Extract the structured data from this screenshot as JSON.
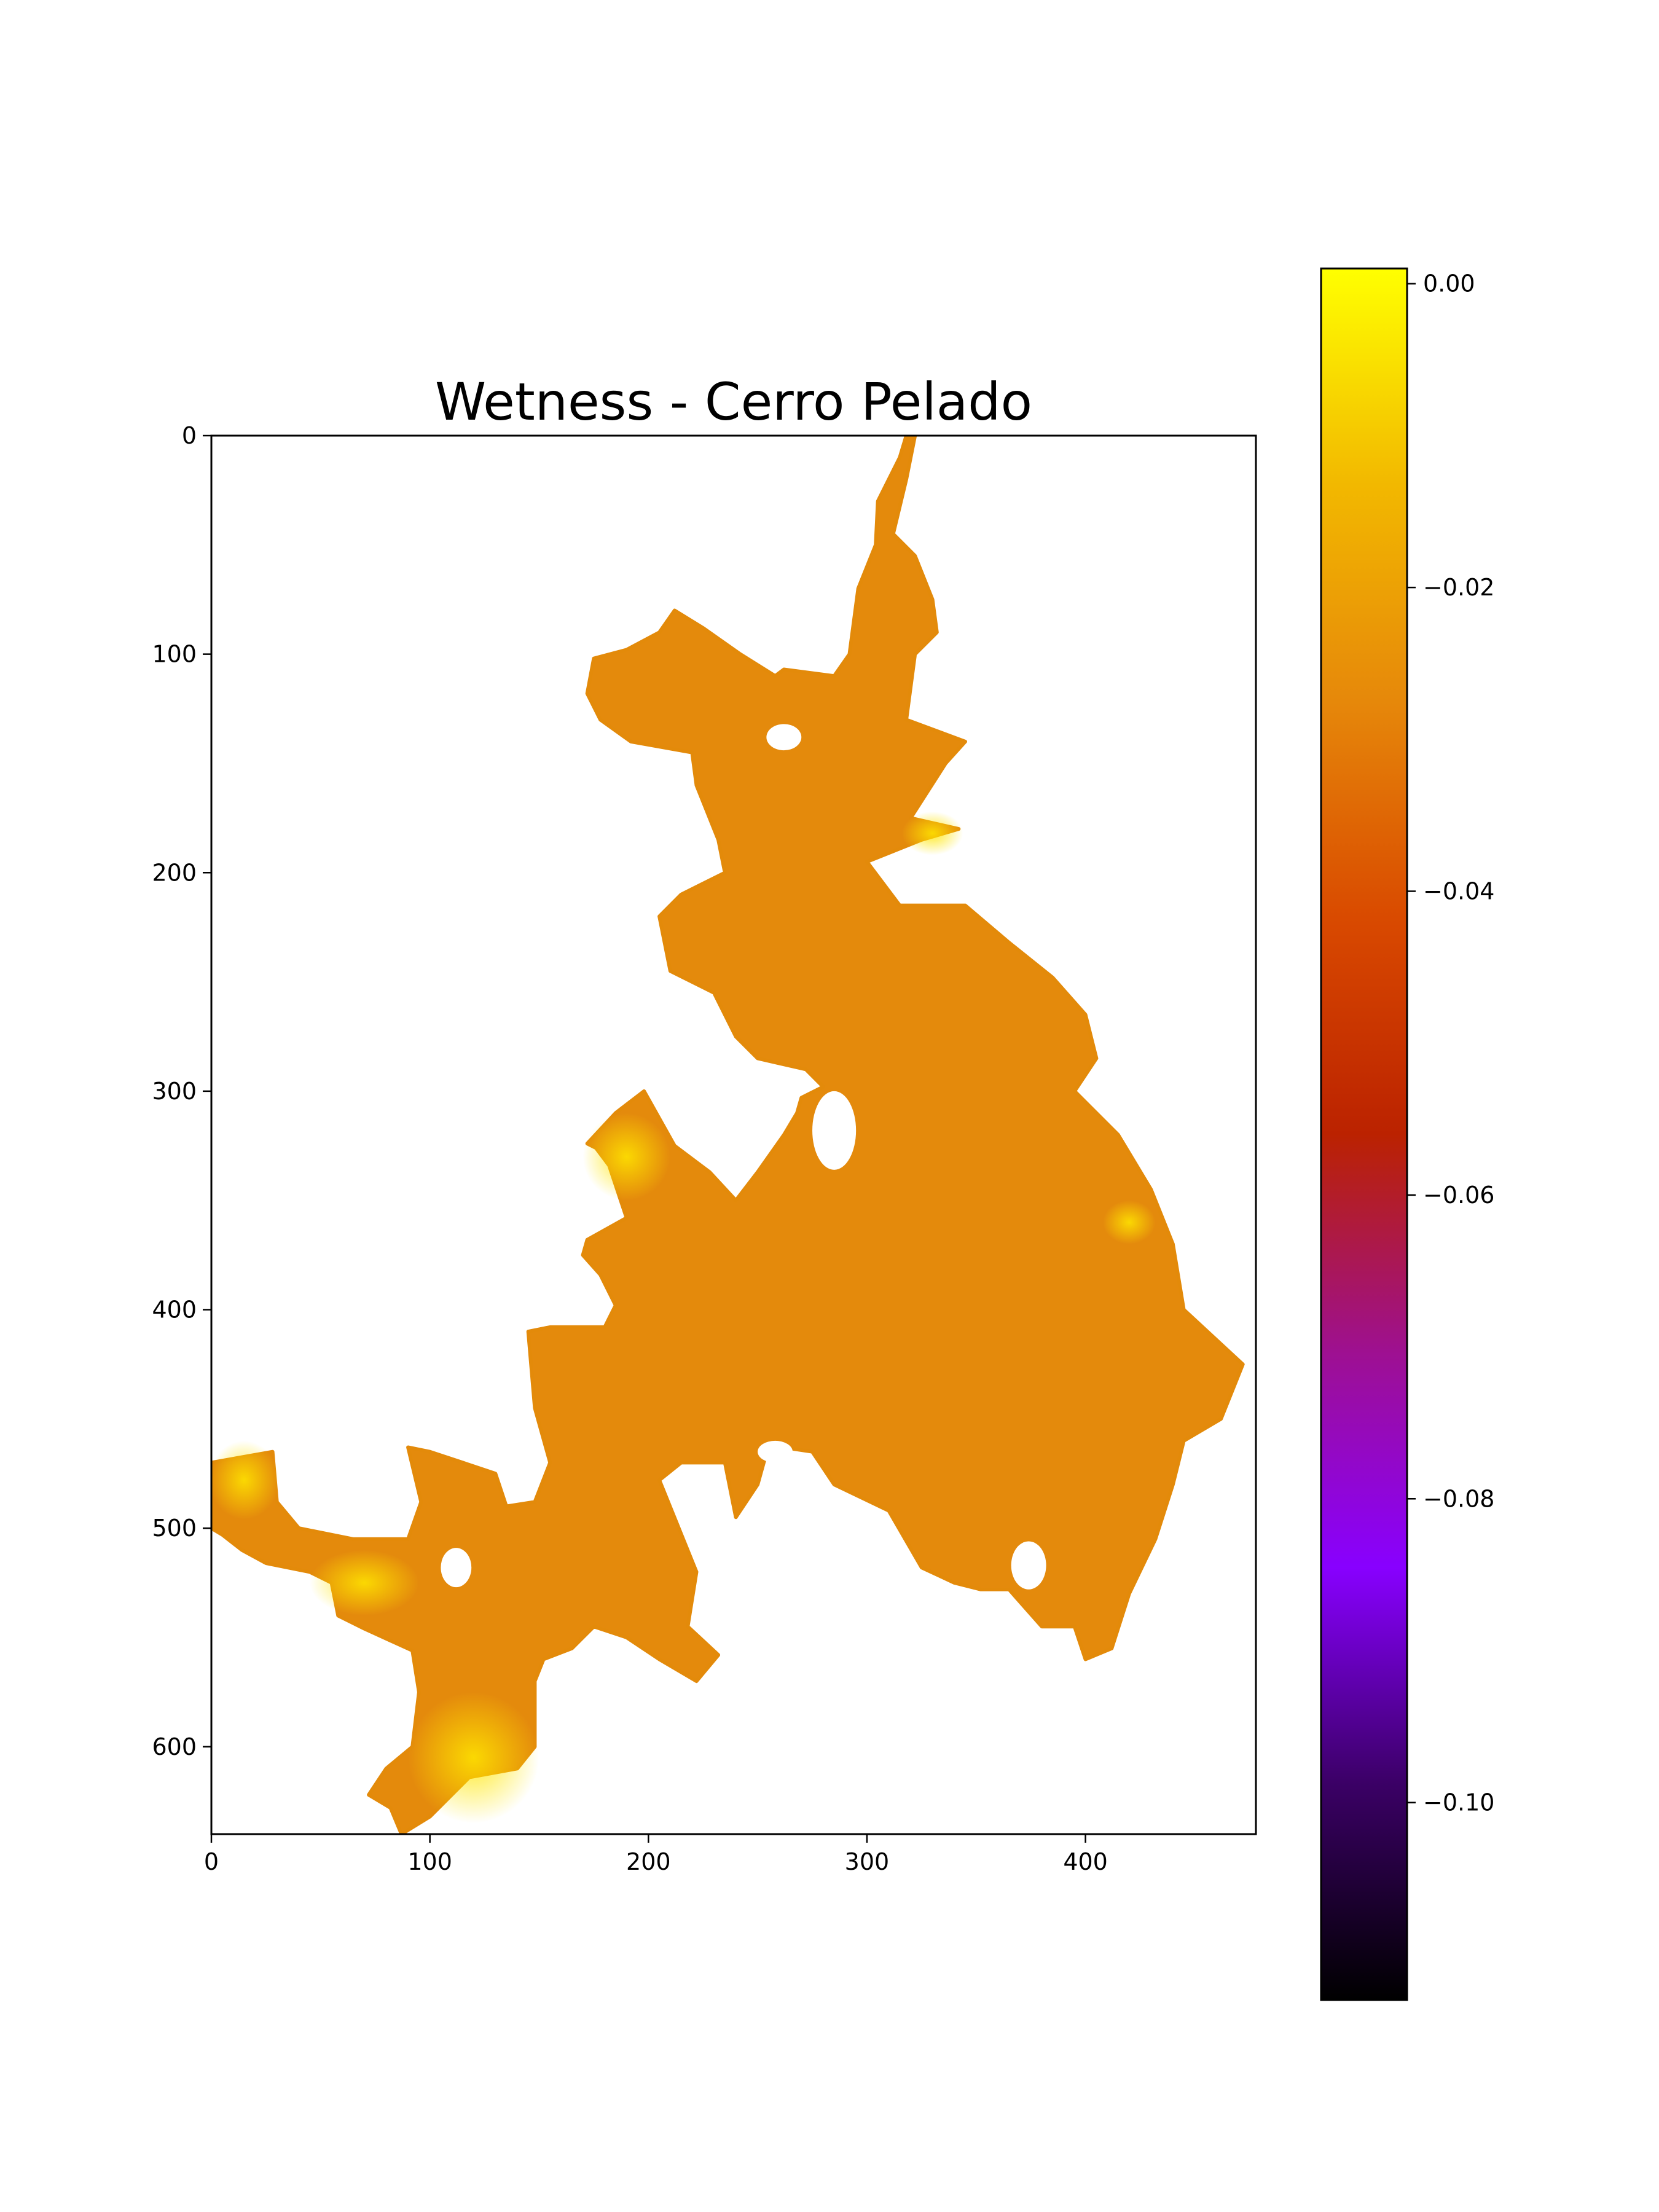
{
  "chart_data": {
    "type": "heatmap",
    "title": "Wetness - Cerro Pelado",
    "xlabel": "",
    "ylabel": "",
    "x_range": [
      0,
      478
    ],
    "y_range": [
      0,
      640
    ],
    "y_inverted": true,
    "x_ticks": [
      0,
      100,
      200,
      300,
      400
    ],
    "y_ticks": [
      0,
      100,
      200,
      300,
      400,
      500,
      600
    ],
    "x_tick_labels": [
      "0",
      "100",
      "200",
      "300",
      "400"
    ],
    "y_tick_labels": [
      "0",
      "100",
      "200",
      "300",
      "400",
      "500",
      "600"
    ],
    "colormap": "gnuplot",
    "colorbar": {
      "vmin": -0.113,
      "vmax": 0.001,
      "ticks": [
        0.0,
        -0.02,
        -0.04,
        -0.06,
        -0.08,
        -0.1
      ],
      "tick_labels": [
        "0.00",
        "−0.02",
        "−0.04",
        "−0.06",
        "−0.08",
        "−0.10"
      ],
      "colors": [
        "#000000",
        "#3b0066",
        "#8800ff",
        "#9e1090",
        "#bb2200",
        "#d94a00",
        "#e6880a",
        "#f2b800",
        "#ffff00"
      ]
    },
    "region_polygon": [
      [
        322,
        0
      ],
      [
        318,
        20
      ],
      [
        312,
        45
      ],
      [
        322,
        55
      ],
      [
        330,
        75
      ],
      [
        332,
        90
      ],
      [
        322,
        100
      ],
      [
        318,
        130
      ],
      [
        345,
        140
      ],
      [
        336,
        150
      ],
      [
        320,
        175
      ],
      [
        342,
        180
      ],
      [
        325,
        185
      ],
      [
        300,
        195
      ],
      [
        315,
        215
      ],
      [
        345,
        215
      ],
      [
        365,
        232
      ],
      [
        385,
        248
      ],
      [
        400,
        265
      ],
      [
        405,
        285
      ],
      [
        395,
        300
      ],
      [
        415,
        320
      ],
      [
        430,
        345
      ],
      [
        440,
        370
      ],
      [
        445,
        400
      ],
      [
        472,
        425
      ],
      [
        462,
        450
      ],
      [
        445,
        460
      ],
      [
        440,
        480
      ],
      [
        432,
        505
      ],
      [
        420,
        530
      ],
      [
        412,
        555
      ],
      [
        400,
        560
      ],
      [
        395,
        545
      ],
      [
        380,
        545
      ],
      [
        365,
        528
      ],
      [
        352,
        528
      ],
      [
        340,
        525
      ],
      [
        325,
        518
      ],
      [
        310,
        492
      ],
      [
        285,
        480
      ],
      [
        275,
        465
      ],
      [
        255,
        462
      ],
      [
        250,
        480
      ],
      [
        240,
        495
      ],
      [
        235,
        470
      ],
      [
        215,
        470
      ],
      [
        205,
        478
      ],
      [
        222,
        520
      ],
      [
        218,
        545
      ],
      [
        232,
        558
      ],
      [
        222,
        570
      ],
      [
        205,
        560
      ],
      [
        190,
        550
      ],
      [
        175,
        545
      ],
      [
        165,
        555
      ],
      [
        152,
        560
      ],
      [
        148,
        570
      ],
      [
        148,
        600
      ],
      [
        140,
        610
      ],
      [
        118,
        614
      ],
      [
        100,
        632
      ],
      [
        87,
        640
      ],
      [
        82,
        628
      ],
      [
        72,
        622
      ],
      [
        80,
        610
      ],
      [
        92,
        600
      ],
      [
        95,
        575
      ],
      [
        92,
        556
      ],
      [
        70,
        546
      ],
      [
        58,
        540
      ],
      [
        55,
        525
      ],
      [
        45,
        520
      ],
      [
        25,
        516
      ],
      [
        14,
        510
      ],
      [
        5,
        503
      ],
      [
        0,
        500
      ],
      [
        0,
        470
      ],
      [
        28,
        465
      ],
      [
        30,
        488
      ],
      [
        40,
        500
      ],
      [
        65,
        505
      ],
      [
        90,
        505
      ],
      [
        96,
        488
      ],
      [
        90,
        463
      ],
      [
        100,
        465
      ],
      [
        115,
        470
      ],
      [
        130,
        475
      ],
      [
        135,
        490
      ],
      [
        148,
        488
      ],
      [
        155,
        470
      ],
      [
        148,
        445
      ],
      [
        145,
        410
      ],
      [
        155,
        408
      ],
      [
        180,
        408
      ],
      [
        185,
        398
      ],
      [
        178,
        384
      ],
      [
        170,
        375
      ],
      [
        172,
        368
      ],
      [
        190,
        358
      ],
      [
        182,
        334
      ],
      [
        176,
        326
      ],
      [
        172,
        324
      ],
      [
        185,
        310
      ],
      [
        198,
        300
      ],
      [
        212,
        325
      ],
      [
        228,
        337
      ],
      [
        240,
        350
      ],
      [
        250,
        337
      ],
      [
        262,
        320
      ],
      [
        268,
        310
      ],
      [
        270,
        303
      ],
      [
        280,
        298
      ],
      [
        272,
        290
      ],
      [
        250,
        285
      ],
      [
        240,
        275
      ],
      [
        230,
        255
      ],
      [
        210,
        245
      ],
      [
        205,
        220
      ],
      [
        215,
        210
      ],
      [
        235,
        200
      ],
      [
        232,
        185
      ],
      [
        222,
        160
      ],
      [
        220,
        145
      ],
      [
        192,
        140
      ],
      [
        178,
        130
      ],
      [
        172,
        118
      ],
      [
        175,
        102
      ],
      [
        190,
        98
      ],
      [
        205,
        90
      ],
      [
        212,
        80
      ],
      [
        225,
        88
      ],
      [
        242,
        100
      ],
      [
        258,
        110
      ],
      [
        262,
        107
      ],
      [
        285,
        110
      ],
      [
        292,
        100
      ],
      [
        296,
        70
      ],
      [
        304,
        50
      ],
      [
        305,
        30
      ],
      [
        315,
        10
      ],
      [
        318,
        0
      ]
    ],
    "holes": [
      {
        "center": [
          262,
          138
        ],
        "radius": [
          8,
          6
        ]
      },
      {
        "center": [
          285,
          318
        ],
        "radius": [
          10,
          18
        ]
      },
      {
        "center": [
          112,
          518
        ],
        "radius": [
          7,
          9
        ]
      },
      {
        "center": [
          374,
          517
        ],
        "radius": [
          8,
          11
        ]
      },
      {
        "center": [
          258,
          465
        ],
        "radius": [
          8,
          5
        ]
      }
    ],
    "bright_spots": [
      {
        "center": [
          15,
          478
        ],
        "radius": [
          16,
          18
        ]
      },
      {
        "center": [
          330,
          182
        ],
        "radius": [
          14,
          10
        ]
      },
      {
        "center": [
          120,
          605
        ],
        "radius": [
          30,
          30
        ]
      },
      {
        "center": [
          70,
          525
        ],
        "radius": [
          25,
          15
        ]
      },
      {
        "center": [
          190,
          330
        ],
        "radius": [
          20,
          20
        ]
      },
      {
        "center": [
          420,
          360
        ],
        "radius": [
          12,
          10
        ]
      }
    ]
  }
}
